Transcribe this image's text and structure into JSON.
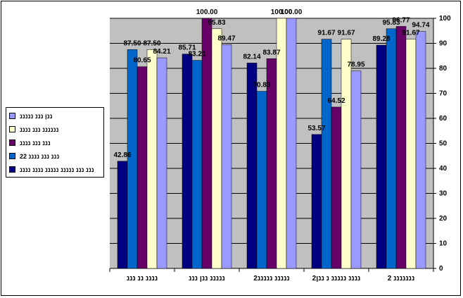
{
  "chart_data": {
    "type": "bar",
    "categories": [
      "ננננ ננ נננ",
      "נננננ ננן נננ",
      "נננננ נננננ2",
      "ננננ נננננ נ ננן2",
      "נננננננ 2"
    ],
    "series": [
      {
        "name": "נננ נננ נננננ נננננ ננננ ננננ",
        "color": "#000080",
        "values": [
          42.86,
          85.71,
          82.14,
          53.57,
          89.28
        ]
      },
      {
        "name": "נננ נננ ננננ 22",
        "color": "#0066CC",
        "values": [
          87.5,
          83.21,
          70.83,
          91.67,
          95.83
        ]
      },
      {
        "name": "נננ נננ ננננ",
        "color": "#660066",
        "values": [
          80.65,
          100.0,
          83.87,
          64.52,
          96.77
        ]
      },
      {
        "name": "ננננננ נננ ננננ",
        "color": "#FFFFCC",
        "values": [
          87.5,
          95.83,
          100.0,
          91.67,
          91.67
        ]
      },
      {
        "name": "ננן נננ נננננ",
        "color": "#9999FF",
        "values": [
          84.21,
          89.47,
          100.0,
          78.95,
          94.74
        ]
      }
    ],
    "value_labels": [
      [
        "42.86",
        "85.71",
        "82.14",
        "53.57",
        "89.28"
      ],
      [
        "87.50",
        "83.21",
        "70.83",
        "91.67",
        "95.83"
      ],
      [
        "80.65",
        "100.00",
        "83.87",
        "64.52",
        "96.77"
      ],
      [
        "87.50",
        "95.83",
        "100.00",
        "91.67",
        "91.67"
      ],
      [
        "84.21",
        "89.47",
        "100.00",
        "78.95",
        "94.74"
      ]
    ],
    "y_ticks": [
      "0",
      "10",
      "20",
      "30",
      "40",
      "50",
      "60",
      "70",
      "80",
      "90",
      "100"
    ],
    "ylim": [
      0,
      100
    ],
    "y_axis_side": "right",
    "grid": true,
    "legend_position": "left",
    "plot_background": "#C0C0C0",
    "title": "",
    "xlabel": "",
    "ylabel": ""
  },
  "legend": {
    "items": [
      {
        "label": "ננן נננ נננננ",
        "color": "#9999FF"
      },
      {
        "label": "ננננננ נננ ננננ",
        "color": "#FFFFCC"
      },
      {
        "label": "נננ נננ ננננ",
        "color": "#660066"
      },
      {
        "label": "נננ נננ ננננ 22",
        "color": "#0066CC"
      },
      {
        "label": "נננ נננ נננננ נננננ ננננ ננננ",
        "color": "#000080"
      }
    ]
  }
}
